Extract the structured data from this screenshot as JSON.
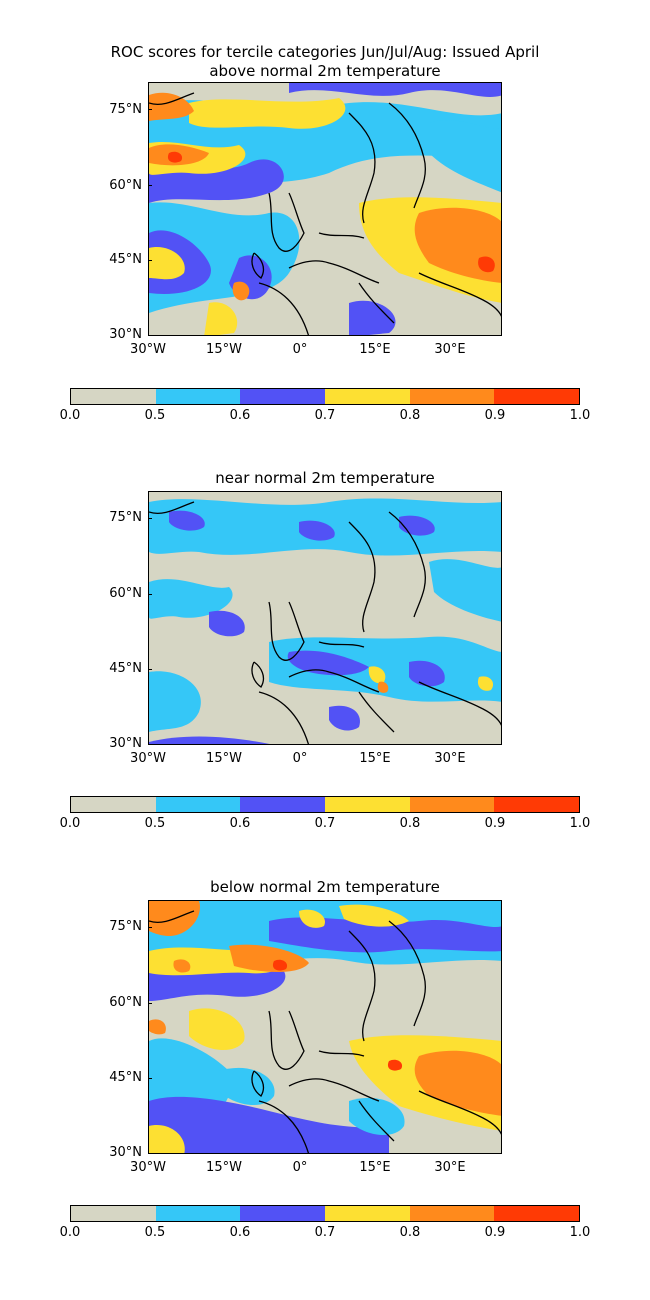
{
  "figure": {
    "title_line1": "ROC scores for tercile categories Jun/Jul/Aug: Issued April"
  },
  "panels": [
    {
      "title": "above normal 2m temperature"
    },
    {
      "title": "near normal 2m temperature"
    },
    {
      "title": "below normal 2m temperature"
    }
  ],
  "axes": {
    "y_ticks": [
      "75°N",
      "60°N",
      "45°N",
      "30°N"
    ],
    "x_ticks": [
      "30°W",
      "15°W",
      "0°",
      "15°E",
      "30°E"
    ]
  },
  "colorbar": {
    "ticks": [
      "0.0",
      "0.5",
      "0.6",
      "0.7",
      "0.8",
      "0.9",
      "1.0"
    ],
    "colors": [
      "#d6d6c4",
      "#35c7f7",
      "#5252f5",
      "#fde032",
      "#ff8a1c",
      "#ff3a05"
    ]
  },
  "field_levels": [
    {
      "range": "0.0-0.5",
      "color": "#d6d6c4"
    },
    {
      "range": "0.5-0.6",
      "color": "#35c7f7"
    },
    {
      "range": "0.6-0.7",
      "color": "#5252f5"
    },
    {
      "range": "0.7-0.8",
      "color": "#fde032"
    },
    {
      "range": "0.8-0.9",
      "color": "#ff8a1c"
    },
    {
      "range": "0.9-1.0",
      "color": "#ff3a05"
    }
  ]
}
